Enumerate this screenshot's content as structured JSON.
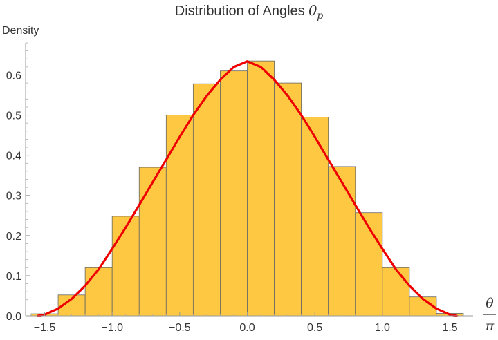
{
  "chart_data": {
    "type": "bar",
    "title": "Distribution of Angles ",
    "title_symbol": "θ",
    "title_subscript": "p",
    "ylabel": "Density",
    "xlabel_numerator": "θ",
    "xlabel_denominator": "π",
    "xlim": [
      -1.6,
      1.6
    ],
    "ylim": [
      0,
      0.68
    ],
    "bar_color": "#fec842",
    "bar_edge_color": "#666666",
    "curve_color": "#ee0000",
    "grid": false,
    "bins": [
      {
        "x0": -1.6,
        "x1": -1.4,
        "value": 0.005
      },
      {
        "x0": -1.4,
        "x1": -1.2,
        "value": 0.052
      },
      {
        "x0": -1.2,
        "x1": -1.0,
        "value": 0.12
      },
      {
        "x0": -1.0,
        "x1": -0.8,
        "value": 0.248
      },
      {
        "x0": -0.8,
        "x1": -0.6,
        "value": 0.37
      },
      {
        "x0": -0.6,
        "x1": -0.4,
        "value": 0.5
      },
      {
        "x0": -0.4,
        "x1": -0.2,
        "value": 0.578
      },
      {
        "x0": -0.2,
        "x1": 0.0,
        "value": 0.61
      },
      {
        "x0": 0.0,
        "x1": 0.2,
        "value": 0.635
      },
      {
        "x0": 0.2,
        "x1": 0.4,
        "value": 0.58
      },
      {
        "x0": 0.4,
        "x1": 0.6,
        "value": 0.495
      },
      {
        "x0": 0.6,
        "x1": 0.8,
        "value": 0.372
      },
      {
        "x0": 0.8,
        "x1": 1.0,
        "value": 0.257
      },
      {
        "x0": 1.0,
        "x1": 1.2,
        "value": 0.12
      },
      {
        "x0": 1.2,
        "x1": 1.4,
        "value": 0.047
      },
      {
        "x0": 1.4,
        "x1": 1.6,
        "value": 0.006
      }
    ],
    "curve": {
      "peak": 0.6366,
      "x": [
        -1.55,
        -1.5,
        -1.4,
        -1.3,
        -1.2,
        -1.1,
        -1.0,
        -0.9,
        -0.8,
        -0.7,
        -0.6,
        -0.5,
        -0.4,
        -0.3,
        -0.2,
        -0.1,
        0.0,
        0.1,
        0.2,
        0.3,
        0.4,
        0.5,
        0.6,
        0.7,
        0.8,
        0.9,
        1.0,
        1.1,
        1.2,
        1.3,
        1.4,
        1.5,
        1.55
      ],
      "y": [
        0.0,
        0.003,
        0.018,
        0.042,
        0.075,
        0.116,
        0.167,
        0.22,
        0.276,
        0.333,
        0.389,
        0.446,
        0.5,
        0.548,
        0.588,
        0.62,
        0.634,
        0.62,
        0.588,
        0.548,
        0.5,
        0.446,
        0.389,
        0.333,
        0.276,
        0.22,
        0.167,
        0.116,
        0.075,
        0.042,
        0.018,
        0.003,
        0.0
      ]
    },
    "x_ticks": [
      {
        "value": -1.5,
        "label": "−1.5"
      },
      {
        "value": -1.0,
        "label": "−1.0"
      },
      {
        "value": -0.5,
        "label": "−0.5"
      },
      {
        "value": 0.0,
        "label": "0.0"
      },
      {
        "value": 0.5,
        "label": "0.5"
      },
      {
        "value": 1.0,
        "label": "1.0"
      },
      {
        "value": 1.5,
        "label": "1.5"
      }
    ],
    "y_ticks": [
      {
        "value": 0.0,
        "label": "0.0"
      },
      {
        "value": 0.1,
        "label": "0.1"
      },
      {
        "value": 0.2,
        "label": "0.2"
      },
      {
        "value": 0.3,
        "label": "0.3"
      },
      {
        "value": 0.4,
        "label": "0.4"
      },
      {
        "value": 0.5,
        "label": "0.5"
      },
      {
        "value": 0.6,
        "label": "0.6"
      }
    ]
  }
}
